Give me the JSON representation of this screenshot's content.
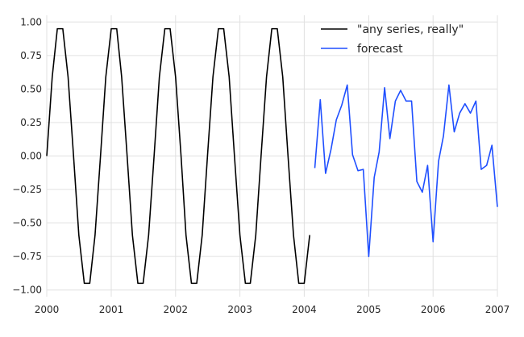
{
  "chart_data": {
    "type": "line",
    "title": "",
    "xlabel": "",
    "ylabel": "",
    "grid": true,
    "legend": {
      "placement": "top-right"
    },
    "xlim": [
      "2000-01-01",
      "2007-01-01"
    ],
    "ylim": [
      -1.05,
      1.05
    ],
    "x_ticks": [
      {
        "value": "2000-01-01",
        "label": "2000"
      },
      {
        "value": "2001-01-01",
        "label": "2001"
      },
      {
        "value": "2002-01-01",
        "label": "2002"
      },
      {
        "value": "2003-01-01",
        "label": "2003"
      },
      {
        "value": "2004-01-01",
        "label": "2004"
      },
      {
        "value": "2005-01-01",
        "label": "2005"
      },
      {
        "value": "2006-01-01",
        "label": "2006"
      },
      {
        "value": "2007-01-01",
        "label": "2007"
      }
    ],
    "y_ticks": [
      {
        "value": 1.0,
        "label": "1.00"
      },
      {
        "value": 0.75,
        "label": "0.75"
      },
      {
        "value": 0.5,
        "label": "0.50"
      },
      {
        "value": 0.25,
        "label": "0.25"
      },
      {
        "value": 0.0,
        "label": "0.00"
      },
      {
        "value": -0.25,
        "label": "−0.25"
      },
      {
        "value": -0.5,
        "label": "−0.50"
      },
      {
        "value": -0.75,
        "label": "−0.75"
      },
      {
        "value": -1.0,
        "label": "−1.00"
      }
    ],
    "series": [
      {
        "name": "\"any series, really\"",
        "color": "#000000",
        "x": [
          "2000-01-01",
          "2000-02-01",
          "2000-03-01",
          "2000-04-01",
          "2000-05-01",
          "2000-06-01",
          "2000-07-01",
          "2000-08-01",
          "2000-09-01",
          "2000-10-01",
          "2000-11-01",
          "2000-12-01",
          "2001-01-01",
          "2001-02-01",
          "2001-03-01",
          "2001-04-01",
          "2001-05-01",
          "2001-06-01",
          "2001-07-01",
          "2001-08-01",
          "2001-09-01",
          "2001-10-01",
          "2001-11-01",
          "2001-12-01",
          "2002-01-01",
          "2002-02-01",
          "2002-03-01",
          "2002-04-01",
          "2002-05-01",
          "2002-06-01",
          "2002-07-01",
          "2002-08-01",
          "2002-09-01",
          "2002-10-01",
          "2002-11-01",
          "2002-12-01",
          "2003-01-01",
          "2003-02-01",
          "2003-03-01",
          "2003-04-01",
          "2003-05-01",
          "2003-06-01",
          "2003-07-01",
          "2003-08-01",
          "2003-09-01",
          "2003-10-01",
          "2003-11-01",
          "2003-12-01",
          "2004-01-01",
          "2004-02-01"
        ],
        "values": [
          0.0,
          0.59,
          0.95,
          0.95,
          0.59,
          0.0,
          -0.59,
          -0.95,
          -0.95,
          -0.59,
          0.0,
          0.59,
          0.95,
          0.95,
          0.59,
          0.0,
          -0.59,
          -0.95,
          -0.95,
          -0.59,
          0.0,
          0.59,
          0.95,
          0.95,
          0.59,
          0.0,
          -0.59,
          -0.95,
          -0.95,
          -0.59,
          0.0,
          0.59,
          0.95,
          0.95,
          0.59,
          0.0,
          -0.59,
          -0.95,
          -0.95,
          -0.59,
          0.0,
          0.59,
          0.95,
          0.95,
          0.59,
          0.0,
          -0.59,
          -0.95,
          -0.95,
          -0.59
        ]
      },
      {
        "name": "forecast",
        "color": "#1f4fff",
        "x": [
          "2004-03-01",
          "2004-04-01",
          "2004-05-01",
          "2004-06-01",
          "2004-07-01",
          "2004-08-01",
          "2004-09-01",
          "2004-10-01",
          "2004-11-01",
          "2004-12-01",
          "2005-01-01",
          "2005-02-01",
          "2005-03-01",
          "2005-04-01",
          "2005-05-01",
          "2005-06-01",
          "2005-07-01",
          "2005-08-01",
          "2005-09-01",
          "2005-10-01",
          "2005-11-01",
          "2005-12-01",
          "2006-01-01",
          "2006-02-01",
          "2006-03-01",
          "2006-04-01",
          "2006-05-01",
          "2006-06-01",
          "2006-07-01",
          "2006-08-01",
          "2006-09-01",
          "2006-10-01",
          "2006-11-01",
          "2006-12-01",
          "2007-01-01"
        ],
        "values": [
          -0.09,
          0.42,
          -0.13,
          0.05,
          0.27,
          0.38,
          0.53,
          0.01,
          -0.11,
          -0.1,
          -0.75,
          -0.16,
          0.03,
          0.51,
          0.13,
          0.41,
          0.49,
          0.41,
          0.41,
          -0.19,
          -0.27,
          -0.07,
          -0.64,
          -0.04,
          0.15,
          0.53,
          0.18,
          0.32,
          0.39,
          0.32,
          0.41,
          -0.1,
          -0.07,
          0.08,
          -0.38
        ]
      }
    ]
  }
}
